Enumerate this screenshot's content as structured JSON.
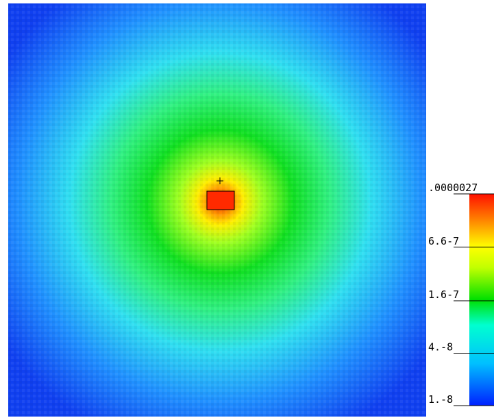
{
  "chart_data": {
    "type": "heatmap",
    "zscale": "log",
    "zlim": [
      1e-08,
      2.7e-06
    ],
    "zticks": [
      {
        "value": 1e-08,
        "label": "1.-8"
      },
      {
        "value": 4e-08,
        "label": "4.-8"
      },
      {
        "value": 1.6e-07,
        "label": "1.6-7"
      },
      {
        "value": 6.6e-07,
        "label": "6.6-7"
      },
      {
        "value": 2.7e-06,
        "label": ".0000027"
      }
    ]
  }
}
